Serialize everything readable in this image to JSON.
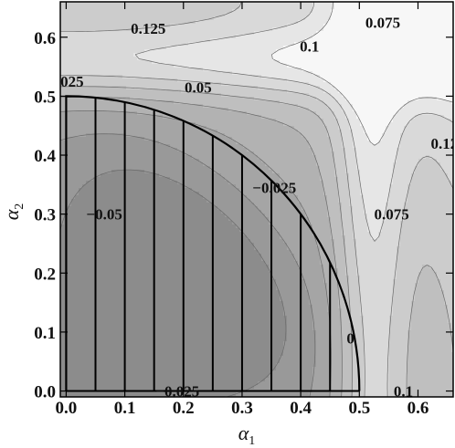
{
  "chart_data": {
    "type": "contour",
    "title": "",
    "xlabel": {
      "symbol": "α",
      "subscript": "1"
    },
    "ylabel": {
      "symbol": "α",
      "subscript": "2"
    },
    "xlim": [
      -0.01,
      0.66
    ],
    "ylim": [
      -0.01,
      0.66
    ],
    "x_ticks": [
      "0.0",
      "0.1",
      "0.2",
      "0.3",
      "0.4",
      "0.5",
      "0.6"
    ],
    "y_ticks": [
      "0.0",
      "0.1",
      "0.2",
      "0.3",
      "0.4",
      "0.5",
      "0.6"
    ],
    "x_tick_values": [
      0.0,
      0.1,
      0.2,
      0.3,
      0.4,
      0.5,
      0.6
    ],
    "y_tick_values": [
      0.0,
      0.1,
      0.2,
      0.3,
      0.4,
      0.5,
      0.6
    ],
    "grid": false,
    "colors": {
      "lowest": "#8c8c8c",
      "highest": "#f7f7f7",
      "boundary": "#000000"
    },
    "contour_labels": [
      {
        "text": "0.125",
        "x": 0.14,
        "y": 0.615
      },
      {
        "text": "0.1",
        "x": 0.415,
        "y": 0.585
      },
      {
        "text": "0.075",
        "x": 0.54,
        "y": 0.625
      },
      {
        "text": "025",
        "x": 0.01,
        "y": 0.525
      },
      {
        "text": "0.05",
        "x": 0.225,
        "y": 0.515
      },
      {
        "text": "0.12",
        "x": 0.645,
        "y": 0.42
      },
      {
        "text": "−0.025",
        "x": 0.355,
        "y": 0.345
      },
      {
        "text": "−0.05",
        "x": 0.065,
        "y": 0.3
      },
      {
        "text": "0.075",
        "x": 0.555,
        "y": 0.3
      },
      {
        "text": "0",
        "x": 0.485,
        "y": 0.09
      },
      {
        "text": "−0.025",
        "x": 0.19,
        "y": 0.0
      },
      {
        "text": "0.1",
        "x": 0.575,
        "y": 0.0
      }
    ],
    "contour_levels": [
      -0.05,
      -0.025,
      0,
      0.025,
      0.05,
      0.075,
      0.1,
      0.125
    ],
    "hatched_region": {
      "boundary": "quarter-circle",
      "radius": 0.5,
      "vertical_lines_x": [
        0.05,
        0.1,
        0.15,
        0.2,
        0.25,
        0.3,
        0.35,
        0.4,
        0.45
      ]
    }
  }
}
